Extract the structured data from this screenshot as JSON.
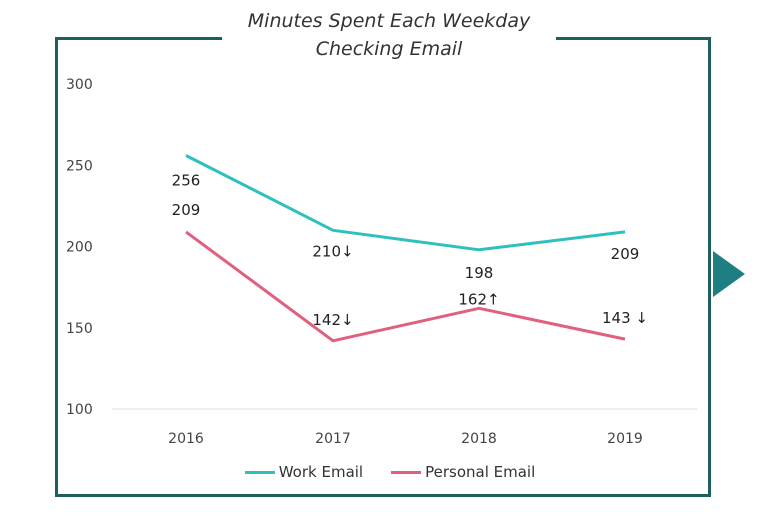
{
  "chart_data": {
    "type": "line",
    "title": [
      "Minutes Spent Each Weekday",
      "Checking Email"
    ],
    "categories": [
      "2016",
      "2017",
      "2018",
      "2019"
    ],
    "ylim": [
      100,
      300
    ],
    "yticks": [
      "100",
      "150",
      "200",
      "250",
      "300"
    ],
    "series": [
      {
        "name": "Work Email",
        "color": "#2ebfbf",
        "values": [
          256,
          210,
          198,
          209
        ],
        "labels": [
          "256",
          "210↓",
          "198",
          "209"
        ]
      },
      {
        "name": "Personal Email",
        "color": "#e0607e",
        "values": [
          209,
          142,
          162,
          143
        ],
        "labels": [
          "209",
          "142↓",
          "162↑",
          "143 ↓"
        ]
      }
    ],
    "legend": "bottom",
    "grid": false
  },
  "colors": {
    "frame": "#1d5e5e",
    "arrow": "#1d7f82"
  },
  "icons": {
    "side_arrow": "triangle-right-icon"
  }
}
